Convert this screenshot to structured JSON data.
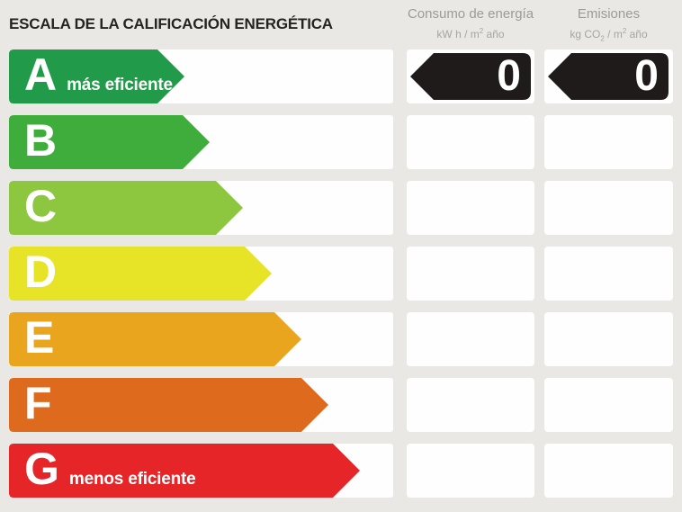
{
  "title": "ESCALA DE LA CALIFICACIÓN ENERGÉTICA",
  "columns": [
    {
      "id": "consumo",
      "label": "Consumo de energía",
      "unit_parts": [
        {
          "t": "kW h / m"
        },
        {
          "t": "2",
          "style": "sup"
        },
        {
          "t": " año"
        }
      ]
    },
    {
      "id": "emisiones",
      "label": "Emisiones",
      "unit_parts": [
        {
          "t": "kg CO"
        },
        {
          "t": "2",
          "style": "sub"
        },
        {
          "t": " / m"
        },
        {
          "t": "2",
          "style": "sup"
        },
        {
          "t": " año"
        }
      ]
    }
  ],
  "scale": {
    "rows": [
      {
        "grade": "A",
        "note": "más eficiente",
        "color": "#219b49",
        "arrow_width": 195,
        "values": {
          "consumo": "0",
          "emisiones": "0"
        }
      },
      {
        "grade": "B",
        "note": "",
        "color": "#3ead3b",
        "arrow_width": 223,
        "values": null
      },
      {
        "grade": "C",
        "note": "",
        "color": "#8dc63f",
        "arrow_width": 260,
        "values": null
      },
      {
        "grade": "D",
        "note": "",
        "color": "#e7e326",
        "arrow_width": 292,
        "values": null
      },
      {
        "grade": "E",
        "note": "",
        "color": "#e9a51e",
        "arrow_width": 325,
        "values": null
      },
      {
        "grade": "F",
        "note": "",
        "color": "#de6a1e",
        "arrow_width": 355,
        "values": null
      },
      {
        "grade": "G",
        "note": "menos eficiente",
        "color": "#e52528",
        "arrow_width": 390,
        "values": null
      }
    ],
    "indicator_color": "#1f1b1a"
  },
  "chart_data": {
    "type": "table",
    "title": "ESCALA DE LA CALIFICACIÓN ENERGÉTICA",
    "categories": [
      "A",
      "B",
      "C",
      "D",
      "E",
      "F",
      "G"
    ],
    "series": [
      {
        "name": "Consumo de energía (kW h / m2 año)",
        "values": [
          0,
          null,
          null,
          null,
          null,
          null,
          null
        ]
      },
      {
        "name": "Emisiones (kg CO2 / m2 año)",
        "values": [
          0,
          null,
          null,
          null,
          null,
          null,
          null
        ]
      }
    ],
    "annotations": [
      "A = más eficiente",
      "G = menos eficiente"
    ],
    "selected_rating": "A",
    "legend_position": "top",
    "grid": false
  }
}
